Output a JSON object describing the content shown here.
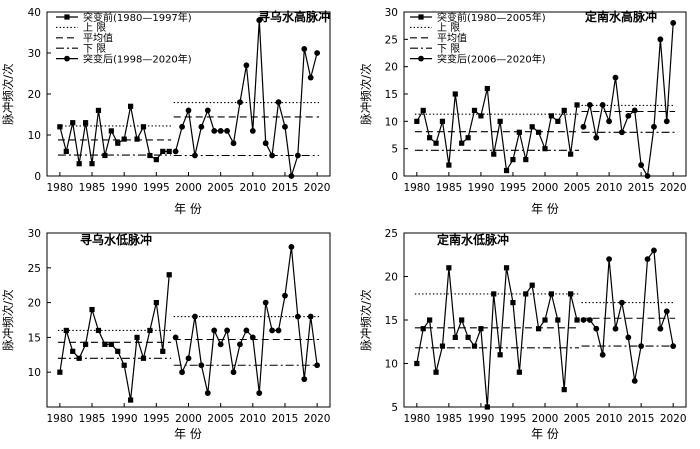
{
  "x_label": "年 份",
  "y_label": "脉冲频次/次",
  "legend_labels": {
    "upper": "上 限",
    "mean": "平均值",
    "lower": "下 限"
  },
  "chart_data": [
    {
      "type": "line",
      "title": "寻乌水高脉冲",
      "xlim": [
        1978,
        2022
      ],
      "xticks": [
        1980,
        1985,
        1990,
        1995,
        2000,
        2005,
        2010,
        2015,
        2020
      ],
      "ylim": [
        0,
        40
      ],
      "yticks": [
        0,
        10,
        20,
        30,
        40
      ],
      "legend": "top-left",
      "series": [
        {
          "name": "突变前(1980—1997年)",
          "marker": "square",
          "x": [
            1980,
            1981,
            1982,
            1983,
            1984,
            1985,
            1986,
            1987,
            1988,
            1989,
            1990,
            1991,
            1992,
            1993,
            1994,
            1995,
            1996,
            1997
          ],
          "values": [
            12,
            6,
            13,
            3,
            13,
            3,
            16,
            5,
            11,
            8,
            9,
            17,
            9,
            12,
            5,
            4,
            6,
            6
          ],
          "upper": 12.2,
          "mean": 8.8,
          "lower": 5.1
        },
        {
          "name": "突变后(1998—2020年)",
          "marker": "circle",
          "x": [
            1998,
            1999,
            2000,
            2001,
            2002,
            2003,
            2004,
            2005,
            2006,
            2007,
            2008,
            2009,
            2010,
            2011,
            2012,
            2013,
            2014,
            2015,
            2016,
            2017,
            2018,
            2019,
            2020
          ],
          "values": [
            6,
            12,
            16,
            5,
            12,
            16,
            11,
            11,
            11,
            8,
            18,
            27,
            11,
            38,
            8,
            5,
            18,
            12,
            0,
            5,
            31,
            24,
            30
          ],
          "upper": 17.9,
          "mean": 14.4,
          "lower": 5.0
        }
      ]
    },
    {
      "type": "line",
      "title": "定南水高脉冲",
      "xlim": [
        1978,
        2022
      ],
      "xticks": [
        1980,
        1985,
        1990,
        1995,
        2000,
        2005,
        2010,
        2015,
        2020
      ],
      "ylim": [
        0,
        30
      ],
      "yticks": [
        0,
        5,
        10,
        15,
        20,
        25,
        30
      ],
      "legend": "top-left",
      "series": [
        {
          "name": "突变前(1980—2005年)",
          "marker": "square",
          "x": [
            1980,
            1981,
            1982,
            1983,
            1984,
            1985,
            1986,
            1987,
            1988,
            1989,
            1990,
            1991,
            1992,
            1993,
            1994,
            1995,
            1996,
            1997,
            1998,
            1999,
            2000,
            2001,
            2002,
            2003,
            2004,
            2005
          ],
          "values": [
            10,
            12,
            7,
            6,
            10,
            2,
            15,
            6,
            7,
            12,
            11,
            16,
            4,
            10,
            1,
            3,
            8,
            3,
            9,
            8,
            5,
            11,
            10,
            12,
            4,
            13
          ],
          "upper": 11.3,
          "mean": 8.1,
          "lower": 4.7
        },
        {
          "name": "突变后(2006—2020年)",
          "marker": "circle",
          "x": [
            2006,
            2007,
            2008,
            2009,
            2010,
            2011,
            2012,
            2013,
            2014,
            2015,
            2016,
            2017,
            2018,
            2019,
            2020
          ],
          "values": [
            9,
            13,
            7,
            13,
            10,
            18,
            8,
            11,
            12,
            2,
            0,
            9,
            25,
            10,
            28
          ],
          "upper": 12.9,
          "mean": 11.8,
          "lower": 8.0
        }
      ]
    },
    {
      "type": "line",
      "title": "寻乌水低脉冲",
      "xlim": [
        1978,
        2022
      ],
      "xticks": [
        1980,
        1985,
        1990,
        1995,
        2000,
        2005,
        2010,
        2015,
        2020
      ],
      "ylim": [
        5,
        30
      ],
      "yticks": [
        10,
        15,
        20,
        25,
        30
      ],
      "series": [
        {
          "name": "突变前(1980—1997年)",
          "marker": "square",
          "x": [
            1980,
            1981,
            1982,
            1983,
            1984,
            1985,
            1986,
            1987,
            1988,
            1989,
            1990,
            1991,
            1992,
            1993,
            1994,
            1995,
            1996,
            1997
          ],
          "values": [
            10,
            16,
            13,
            12,
            14,
            19,
            16,
            14,
            14,
            13,
            11,
            6,
            15,
            12,
            16,
            20,
            13,
            24
          ],
          "upper": 16.0,
          "mean": 14.3,
          "lower": 12.0
        },
        {
          "name": "突变后(1998—2020年)",
          "marker": "circle",
          "x": [
            1998,
            1999,
            2000,
            2001,
            2002,
            2003,
            2004,
            2005,
            2006,
            2007,
            2008,
            2009,
            2010,
            2011,
            2012,
            2013,
            2014,
            2015,
            2016,
            2017,
            2018,
            2019,
            2020
          ],
          "values": [
            15,
            10,
            12,
            18,
            11,
            7,
            16,
            14,
            16,
            10,
            14,
            16,
            15,
            7,
            20,
            16,
            16,
            21,
            28,
            18,
            9,
            18,
            11
          ],
          "upper": 18.0,
          "mean": 14.7,
          "lower": 11.0
        }
      ]
    },
    {
      "type": "line",
      "title": "定南水低脉冲",
      "xlim": [
        1978,
        2022
      ],
      "xticks": [
        1980,
        1985,
        1990,
        1995,
        2000,
        2005,
        2010,
        2015,
        2020
      ],
      "ylim": [
        5,
        25
      ],
      "yticks": [
        5,
        10,
        15,
        20,
        25
      ],
      "series": [
        {
          "name": "突变前(1980—2005年)",
          "marker": "square",
          "x": [
            1980,
            1981,
            1982,
            1983,
            1984,
            1985,
            1986,
            1987,
            1988,
            1989,
            1990,
            1991,
            1992,
            1993,
            1994,
            1995,
            1996,
            1997,
            1998,
            1999,
            2000,
            2001,
            2002,
            2003,
            2004,
            2005
          ],
          "values": [
            10,
            14,
            15,
            9,
            12,
            21,
            13,
            15,
            13,
            12,
            14,
            5,
            18,
            11,
            21,
            17,
            9,
            18,
            19,
            14,
            15,
            18,
            15,
            7,
            18,
            15
          ],
          "upper": 18.0,
          "mean": 14.1,
          "lower": 11.8
        },
        {
          "name": "突变后(2006—2020年)",
          "marker": "circle",
          "x": [
            2006,
            2007,
            2008,
            2009,
            2010,
            2011,
            2012,
            2013,
            2014,
            2015,
            2016,
            2017,
            2018,
            2019,
            2020
          ],
          "values": [
            15,
            15,
            14,
            11,
            22,
            14,
            17,
            13,
            8,
            12,
            22,
            23,
            14,
            16,
            12
          ],
          "upper": 17.0,
          "mean": 15.2,
          "lower": 12.0
        }
      ]
    }
  ]
}
